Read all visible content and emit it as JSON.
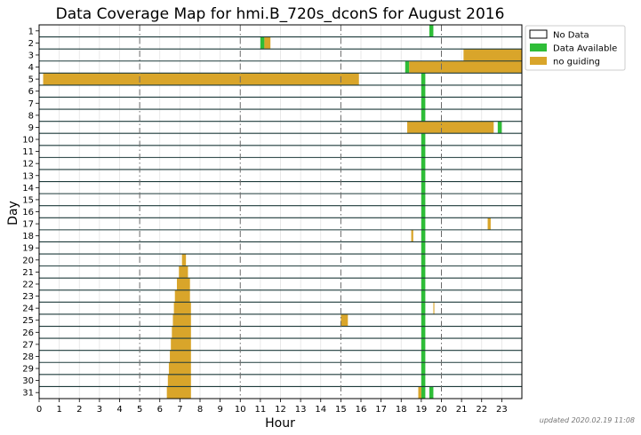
{
  "chart_data": {
    "type": "heatmap",
    "title": "Data Coverage Map for hmi.B_720s_dconS for August 2016",
    "xlabel": "Hour",
    "ylabel": "Day",
    "xlim": [
      0,
      24
    ],
    "x_ticks": [
      0,
      1,
      2,
      3,
      4,
      5,
      6,
      7,
      8,
      9,
      10,
      11,
      12,
      13,
      14,
      15,
      16,
      17,
      18,
      19,
      20,
      21,
      22,
      23
    ],
    "x_ticks_labels": [
      "0",
      "1",
      "2",
      "3",
      "4",
      "5",
      "6",
      "7",
      "8",
      "9",
      "10",
      "11",
      "12",
      "13",
      "14",
      "15",
      "16",
      "17",
      "18",
      "19",
      "20",
      "21",
      "22",
      "23"
    ],
    "day_labels": [
      "1",
      "2",
      "3",
      "4",
      "5",
      "6",
      "7",
      "8",
      "9",
      "10",
      "11",
      "12",
      "13",
      "14",
      "15",
      "16",
      "17",
      "18",
      "19",
      "20",
      "21",
      "22",
      "23",
      "24",
      "25",
      "26",
      "27",
      "28",
      "29",
      "30",
      "31"
    ],
    "dashed_hours": [
      5,
      10,
      15,
      20
    ],
    "legend": [
      {
        "name": "No Data",
        "color": "#ffffff"
      },
      {
        "name": "Data Available",
        "color": "#2ebd37"
      },
      {
        "name": "no guiding",
        "color": "#d9a52a"
      }
    ],
    "series": [
      {
        "name": "Data Available",
        "color": "#2ebd37",
        "segments": [
          {
            "day": 1,
            "start": 19.4,
            "end": 19.6
          },
          {
            "day": 2,
            "start": 11.0,
            "end": 11.2
          },
          {
            "day": 4,
            "start": 18.2,
            "end": 18.4
          },
          {
            "day": 5,
            "start": 19.0,
            "end": 19.2
          },
          {
            "day": 6,
            "start": 19.0,
            "end": 19.2
          },
          {
            "day": 7,
            "start": 19.0,
            "end": 19.2
          },
          {
            "day": 8,
            "start": 19.0,
            "end": 19.2
          },
          {
            "day": 9,
            "start": 19.0,
            "end": 19.2
          },
          {
            "day": 9,
            "start": 22.8,
            "end": 23.0
          },
          {
            "day": 10,
            "start": 19.0,
            "end": 19.2
          },
          {
            "day": 11,
            "start": 19.0,
            "end": 19.2
          },
          {
            "day": 12,
            "start": 19.0,
            "end": 19.2
          },
          {
            "day": 13,
            "start": 19.0,
            "end": 19.2
          },
          {
            "day": 14,
            "start": 19.0,
            "end": 19.2
          },
          {
            "day": 15,
            "start": 19.0,
            "end": 19.2
          },
          {
            "day": 16,
            "start": 19.0,
            "end": 19.2
          },
          {
            "day": 17,
            "start": 19.0,
            "end": 19.2
          },
          {
            "day": 18,
            "start": 19.0,
            "end": 19.2
          },
          {
            "day": 19,
            "start": 19.0,
            "end": 19.2
          },
          {
            "day": 20,
            "start": 19.0,
            "end": 19.2
          },
          {
            "day": 21,
            "start": 19.0,
            "end": 19.2
          },
          {
            "day": 22,
            "start": 19.0,
            "end": 19.2
          },
          {
            "day": 23,
            "start": 19.0,
            "end": 19.2
          },
          {
            "day": 24,
            "start": 19.0,
            "end": 19.2
          },
          {
            "day": 25,
            "start": 19.0,
            "end": 19.2
          },
          {
            "day": 26,
            "start": 19.0,
            "end": 19.2
          },
          {
            "day": 27,
            "start": 19.0,
            "end": 19.2
          },
          {
            "day": 28,
            "start": 19.0,
            "end": 19.2
          },
          {
            "day": 29,
            "start": 19.0,
            "end": 19.2
          },
          {
            "day": 30,
            "start": 19.0,
            "end": 19.2
          },
          {
            "day": 31,
            "start": 19.0,
            "end": 19.2
          },
          {
            "day": 31,
            "start": 19.4,
            "end": 19.6
          }
        ]
      },
      {
        "name": "no guiding",
        "color": "#d9a52a",
        "segments": [
          {
            "day": 2,
            "start": 11.2,
            "end": 11.5
          },
          {
            "day": 3,
            "start": 21.1,
            "end": 24.0
          },
          {
            "day": 4,
            "start": 18.4,
            "end": 24.0
          },
          {
            "day": 5,
            "start": 0.2,
            "end": 15.9
          },
          {
            "day": 9,
            "start": 18.3,
            "end": 22.6
          },
          {
            "day": 17,
            "start": 22.3,
            "end": 22.45
          },
          {
            "day": 18,
            "start": 18.5,
            "end": 18.6
          },
          {
            "day": 20,
            "start": 7.1,
            "end": 7.3
          },
          {
            "day": 21,
            "start": 6.95,
            "end": 7.4
          },
          {
            "day": 22,
            "start": 6.85,
            "end": 7.5
          },
          {
            "day": 23,
            "start": 6.75,
            "end": 7.5
          },
          {
            "day": 24,
            "start": 6.7,
            "end": 7.55
          },
          {
            "day": 24,
            "start": 19.6,
            "end": 19.65
          },
          {
            "day": 25,
            "start": 6.65,
            "end": 7.55
          },
          {
            "day": 25,
            "start": 15.0,
            "end": 15.35
          },
          {
            "day": 26,
            "start": 6.6,
            "end": 7.55
          },
          {
            "day": 27,
            "start": 6.55,
            "end": 7.55
          },
          {
            "day": 28,
            "start": 6.5,
            "end": 7.55
          },
          {
            "day": 29,
            "start": 6.45,
            "end": 7.55
          },
          {
            "day": 30,
            "start": 6.4,
            "end": 7.55
          },
          {
            "day": 31,
            "start": 6.35,
            "end": 7.55
          },
          {
            "day": 31,
            "start": 18.85,
            "end": 19.0
          }
        ]
      }
    ]
  },
  "footer": "updated 2020.02.19 11:08"
}
